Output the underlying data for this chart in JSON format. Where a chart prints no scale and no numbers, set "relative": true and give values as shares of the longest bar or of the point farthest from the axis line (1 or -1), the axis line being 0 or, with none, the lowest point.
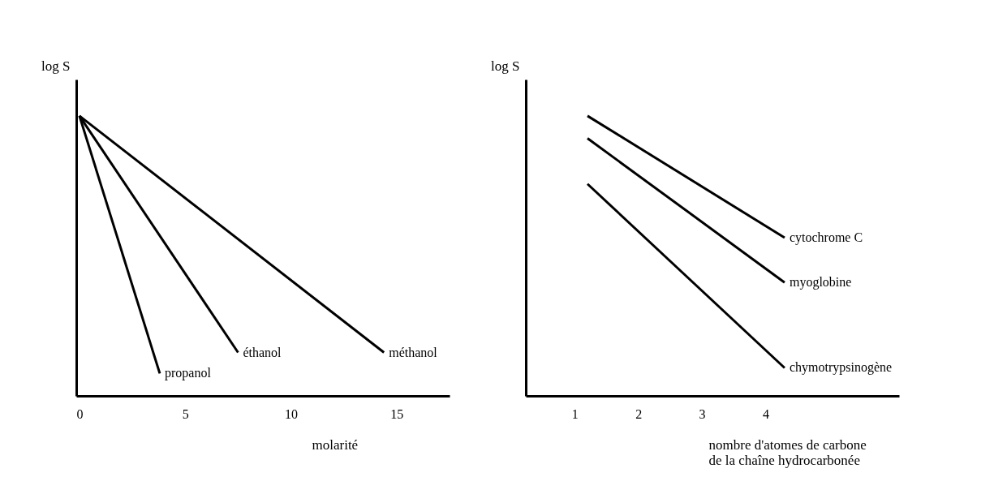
{
  "chart_data": [
    {
      "type": "line",
      "relative": true,
      "ylabel": "log S",
      "xlabel": "molarité",
      "xlim": [
        -0.15,
        17.5
      ],
      "xticks": [
        0,
        5,
        10,
        15
      ],
      "grid": false,
      "series": [
        {
          "name": "méthanol",
          "color": "#000000",
          "x": [
            0,
            14.4
          ],
          "values": [
            1,
            0.155
          ]
        },
        {
          "name": "éthanol",
          "color": "#000000",
          "x": [
            0,
            7.5
          ],
          "values": [
            1,
            0.155
          ]
        },
        {
          "name": "propanol",
          "color": "#000000",
          "x": [
            0,
            3.8
          ],
          "values": [
            1,
            0.08
          ]
        }
      ]
    },
    {
      "type": "line",
      "relative": true,
      "ylabel": "log S",
      "xlabel": "nombre d'atomes de carbone\nde la chaîne hydrocarbonée",
      "xlim": [
        0.23,
        6.1
      ],
      "xticks": [
        1,
        2,
        3,
        4
      ],
      "grid": false,
      "series": [
        {
          "name": "cytochrome C",
          "color": "#000000",
          "x": [
            1.2,
            4.3
          ],
          "values": [
            1,
            0.565
          ]
        },
        {
          "name": "myoglobine",
          "color": "#000000",
          "x": [
            1.2,
            4.3
          ],
          "values": [
            0.92,
            0.405
          ]
        },
        {
          "name": "chymotrypsinogène",
          "color": "#000000",
          "x": [
            1.2,
            4.3
          ],
          "values": [
            0.757,
            0.1
          ]
        }
      ]
    }
  ]
}
